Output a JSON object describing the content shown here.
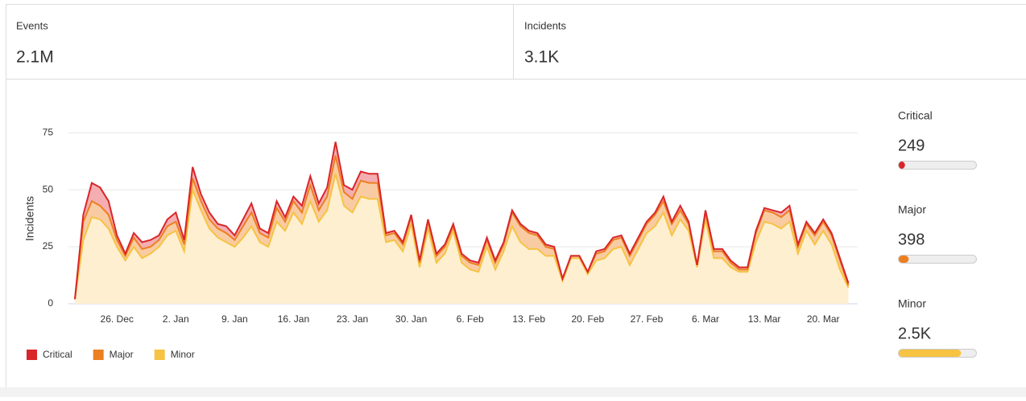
{
  "cards": [
    {
      "title": "Events",
      "value": 2100000,
      "value_label": "2.1M"
    },
    {
      "title": "Incidents",
      "value": 3100,
      "value_label": "3.1K"
    }
  ],
  "chart_data": {
    "type": "stacked_area",
    "y_label": "Incidents",
    "ylim": [
      0,
      80
    ],
    "yticks": [
      0,
      25,
      50,
      75
    ],
    "grid": true,
    "legend": "bottom-left",
    "categories": [
      null,
      null,
      null,
      null,
      null,
      "26. Dec",
      null,
      null,
      null,
      null,
      null,
      null,
      "2. Jan",
      null,
      null,
      null,
      null,
      null,
      null,
      "9. Jan",
      null,
      null,
      null,
      null,
      null,
      null,
      "16. Jan",
      null,
      null,
      null,
      null,
      null,
      null,
      "23. Jan",
      null,
      null,
      null,
      null,
      null,
      null,
      "30. Jan",
      null,
      null,
      null,
      null,
      null,
      null,
      "6. Feb",
      null,
      null,
      null,
      null,
      null,
      null,
      "13. Feb",
      null,
      null,
      null,
      null,
      null,
      null,
      "20. Feb",
      null,
      null,
      null,
      null,
      null,
      null,
      "27. Feb",
      null,
      null,
      null,
      null,
      null,
      null,
      "6. Mar",
      null,
      null,
      null,
      null,
      null,
      null,
      "13. Mar",
      null,
      null,
      null,
      null,
      null,
      null,
      "20. Mar",
      null,
      null,
      null
    ],
    "series": [
      {
        "name": "Critical",
        "color": "#d9262a",
        "fill": "#f4aeb1",
        "values": [
          0,
          3,
          8,
          8,
          6,
          2,
          1,
          2,
          3,
          3,
          2,
          3,
          4,
          2,
          5,
          3,
          3,
          2,
          3,
          2,
          3,
          4,
          2,
          2,
          3,
          2,
          2,
          3,
          4,
          3,
          4,
          6,
          3,
          4,
          4,
          4,
          4,
          1,
          1,
          1,
          1,
          1,
          1,
          1,
          1,
          1,
          1,
          1,
          1,
          1,
          1,
          1,
          1,
          1,
          1,
          1,
          1,
          1,
          0,
          0,
          0,
          0,
          1,
          1,
          1,
          1,
          1,
          1,
          1,
          1,
          2,
          1,
          2,
          1,
          0,
          1,
          1,
          1,
          1,
          1,
          1,
          1,
          1,
          1,
          2,
          2,
          1,
          1,
          1,
          1,
          1,
          1,
          1
        ]
      },
      {
        "name": "Major",
        "color": "#ec7f1f",
        "fill": "#f9cba3",
        "values": [
          0,
          8,
          7,
          6,
          6,
          3,
          2,
          4,
          4,
          3,
          3,
          4,
          4,
          3,
          5,
          4,
          4,
          4,
          4,
          3,
          5,
          6,
          4,
          4,
          6,
          4,
          5,
          5,
          7,
          5,
          6,
          8,
          6,
          6,
          7,
          7,
          7,
          3,
          3,
          3,
          3,
          2,
          3,
          3,
          3,
          2,
          3,
          3,
          3,
          3,
          3,
          3,
          6,
          7,
          7,
          6,
          4,
          3,
          1,
          1,
          1,
          1,
          3,
          3,
          4,
          4,
          4,
          4,
          4,
          5,
          5,
          5,
          4,
          3,
          1,
          3,
          3,
          3,
          2,
          1,
          1,
          4,
          5,
          5,
          5,
          5,
          3,
          3,
          4,
          4,
          4,
          4,
          1
        ]
      },
      {
        "name": "Minor",
        "color": "#f6c343",
        "fill": "#fdefd0",
        "values": [
          2,
          28,
          38,
          37,
          33,
          25,
          19,
          25,
          20,
          22,
          25,
          30,
          32,
          23,
          50,
          41,
          33,
          29,
          27,
          25,
          29,
          34,
          27,
          25,
          36,
          32,
          40,
          35,
          45,
          36,
          41,
          57,
          43,
          40,
          47,
          46,
          46,
          27,
          28,
          23,
          35,
          16,
          33,
          18,
          22,
          32,
          18,
          15,
          14,
          25,
          15,
          23,
          34,
          27,
          24,
          24,
          21,
          21,
          10,
          20,
          20,
          13,
          19,
          20,
          24,
          25,
          17,
          24,
          31,
          34,
          40,
          30,
          37,
          32,
          16,
          37,
          20,
          20,
          16,
          14,
          14,
          27,
          36,
          35,
          33,
          36,
          22,
          32,
          26,
          32,
          26,
          15,
          7
        ]
      }
    ],
    "summary": [
      {
        "name": "Critical",
        "value": 249
      },
      {
        "name": "Major",
        "value": 398
      },
      {
        "name": "Minor",
        "value": 2500,
        "value_label": "2.5K"
      }
    ]
  }
}
